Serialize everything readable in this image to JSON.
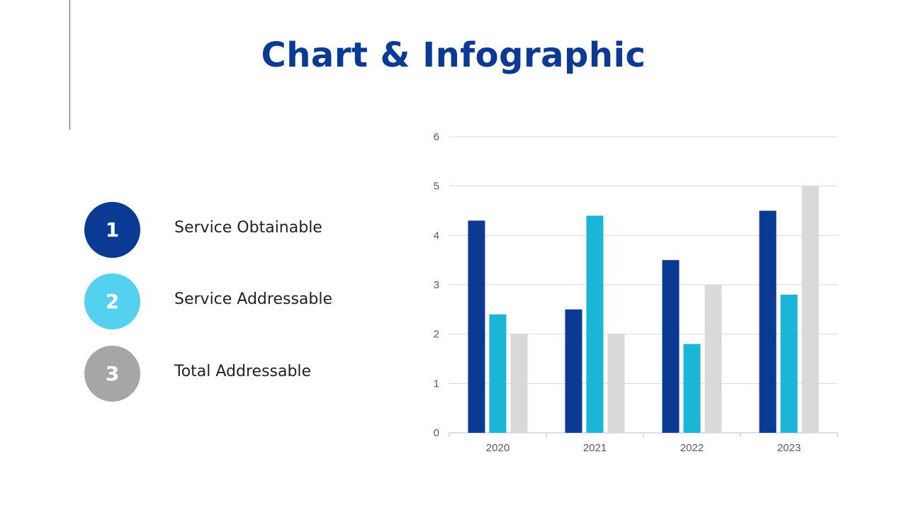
{
  "title": "Chart & Infographic",
  "legend": [
    {
      "number": "1",
      "label": "Service Obtainable",
      "color": "#0a3a94"
    },
    {
      "number": "2",
      "label": "Service Addressable",
      "color": "#54d1ee"
    },
    {
      "number": "3",
      "label": "Total Addressable",
      "color": "#a6a6a6"
    }
  ],
  "chart_data": {
    "type": "bar",
    "categories": [
      "2020",
      "2021",
      "2022",
      "2023"
    ],
    "series": [
      {
        "values": [
          4.3,
          2.5,
          3.5,
          4.5
        ],
        "color": "#0a3a94"
      },
      {
        "values": [
          2.4,
          4.4,
          1.8,
          2.8
        ],
        "color": "#1bb5d8"
      },
      {
        "values": [
          2.0,
          2.0,
          3.0,
          5.0
        ],
        "color": "#d9d9d9"
      }
    ],
    "yticks": [
      "0",
      "1",
      "2",
      "3",
      "4",
      "5",
      "6"
    ],
    "ylim": [
      0,
      6
    ],
    "grid": true
  }
}
